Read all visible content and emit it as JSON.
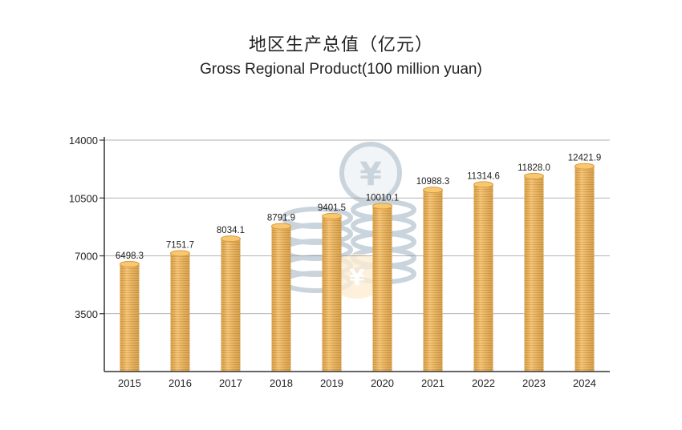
{
  "chart_data": {
    "type": "bar",
    "title": "地区生产总值（亿元）",
    "subtitle": "Gross Regional Product(100 million yuan)",
    "categories": [
      "2015",
      "2016",
      "2017",
      "2018",
      "2019",
      "2020",
      "2021",
      "2022",
      "2023",
      "2024"
    ],
    "values": [
      6498.3,
      7151.7,
      8034.1,
      8791.9,
      9401.5,
      10010.1,
      10988.3,
      11314.6,
      11828.0,
      12421.9
    ],
    "value_labels": [
      "6498.3",
      "7151.7",
      "8034.1",
      "8791.9",
      "9401.5",
      "10010.1",
      "10988.3",
      "11314.6",
      "11828.0",
      "12421.9"
    ],
    "y_ticks": [
      3500,
      7000,
      10500,
      14000
    ],
    "ylim": [
      0,
      14000
    ],
    "grid": true,
    "bar_style": "stacked gold coins",
    "colors": {
      "coin": "#f2b75a",
      "coin_edge": "#e09a3a",
      "axis": "#333333",
      "grid": "#999999"
    }
  }
}
